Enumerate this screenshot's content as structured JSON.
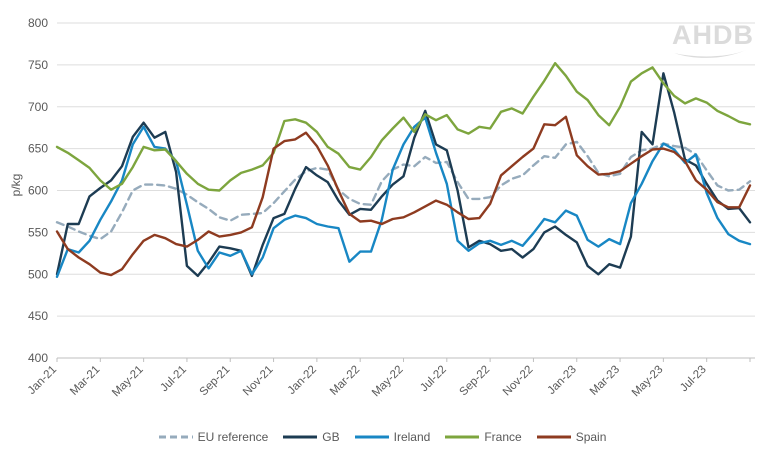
{
  "logo": {
    "text": "AHDB"
  },
  "chart_data": {
    "type": "line",
    "title": "",
    "ylabel": "p/kg",
    "ylim": [
      400,
      800
    ],
    "ytick_step": 50,
    "ytick_labels": [
      "400",
      "450",
      "500",
      "550",
      "600",
      "650",
      "700",
      "750",
      "800"
    ],
    "x_unit": "months since Jan-2021, sampled every 0.5 month",
    "x_start": 0,
    "x_step": 0.5,
    "x_end": 32,
    "xtick_months": [
      0,
      2,
      4,
      6,
      8,
      10,
      12,
      14,
      16,
      18,
      20,
      22,
      24,
      26,
      28,
      30
    ],
    "xtick_labels": [
      "Jan-21",
      "Mar-21",
      "May-21",
      "Jul-21",
      "Sep-21",
      "Nov-21",
      "Jan-22",
      "Mar-22",
      "May-22",
      "Jul-22",
      "Sep-22",
      "Nov-22",
      "Jan-23",
      "Mar-23",
      "May-23",
      "Jul-23"
    ],
    "grid": "horizontal",
    "legend_position": "bottom",
    "axis_color": "#bfbfbf",
    "grid_color": "#dedede",
    "text_color": "#595959",
    "series": [
      {
        "name": "EU reference",
        "color": "#96abbc",
        "style": "dashed",
        "values": [
          562,
          557,
          551,
          546,
          542,
          551,
          574,
          600,
          607,
          607,
          606,
          602,
          595,
          586,
          578,
          568,
          564,
          571,
          572,
          573,
          585,
          599,
          613,
          623,
          627,
          625,
          601,
          590,
          584,
          583,
          611,
          625,
          631,
          629,
          640,
          633,
          634,
          610,
          590,
          590,
          592,
          606,
          614,
          618,
          630,
          641,
          639,
          655,
          658,
          641,
          621,
          617,
          620,
          640,
          648,
          650,
          656,
          653,
          651,
          643,
          624,
          606,
          600,
          601,
          611
        ]
      },
      {
        "name": "GB",
        "color": "#1d3c53",
        "style": "solid",
        "values": [
          500,
          560,
          560,
          593,
          603,
          612,
          629,
          664,
          681,
          663,
          670,
          622,
          510,
          498,
          514,
          533,
          531,
          528,
          498,
          535,
          567,
          572,
          602,
          628,
          618,
          610,
          588,
          571,
          578,
          577,
          593,
          607,
          617,
          663,
          695,
          655,
          648,
          600,
          532,
          540,
          536,
          528,
          530,
          520,
          530,
          550,
          557,
          547,
          538,
          510,
          500,
          512,
          508,
          545,
          670,
          655,
          740,
          693,
          637,
          630,
          608,
          588,
          578,
          579,
          562
        ]
      },
      {
        "name": "Ireland",
        "color": "#1887c4",
        "style": "solid",
        "values": [
          497,
          530,
          526,
          540,
          565,
          587,
          612,
          655,
          676,
          652,
          650,
          635,
          583,
          528,
          507,
          526,
          522,
          528,
          500,
          520,
          555,
          565,
          570,
          567,
          560,
          557,
          555,
          515,
          527,
          527,
          565,
          625,
          655,
          676,
          687,
          645,
          608,
          540,
          528,
          537,
          540,
          535,
          540,
          534,
          549,
          566,
          562,
          576,
          570,
          541,
          533,
          542,
          536,
          585,
          608,
          635,
          656,
          649,
          633,
          643,
          597,
          567,
          548,
          540,
          536
        ]
      },
      {
        "name": "France",
        "color": "#7da53e",
        "style": "solid",
        "values": [
          652,
          645,
          636,
          627,
          612,
          601,
          608,
          628,
          652,
          648,
          649,
          635,
          620,
          608,
          601,
          600,
          612,
          621,
          625,
          630,
          645,
          683,
          685,
          681,
          670,
          652,
          644,
          628,
          625,
          640,
          660,
          674,
          687,
          670,
          691,
          684,
          690,
          673,
          668,
          676,
          674,
          694,
          698,
          692,
          712,
          731,
          752,
          737,
          718,
          708,
          690,
          678,
          700,
          730,
          740,
          747,
          728,
          713,
          704,
          710,
          705,
          695,
          689,
          682,
          679
        ]
      },
      {
        "name": "Spain",
        "color": "#8e3b20",
        "style": "solid",
        "values": [
          551,
          530,
          520,
          512,
          502,
          499,
          506,
          524,
          540,
          547,
          543,
          536,
          533,
          541,
          551,
          545,
          547,
          550,
          556,
          592,
          650,
          659,
          661,
          669,
          653,
          630,
          600,
          572,
          563,
          564,
          560,
          566,
          568,
          574,
          581,
          588,
          583,
          574,
          566,
          567,
          584,
          618,
          629,
          640,
          650,
          679,
          678,
          688,
          642,
          629,
          619,
          620,
          623,
          632,
          641,
          649,
          650,
          646,
          635,
          612,
          601,
          586,
          580,
          580,
          606
        ]
      }
    ]
  }
}
